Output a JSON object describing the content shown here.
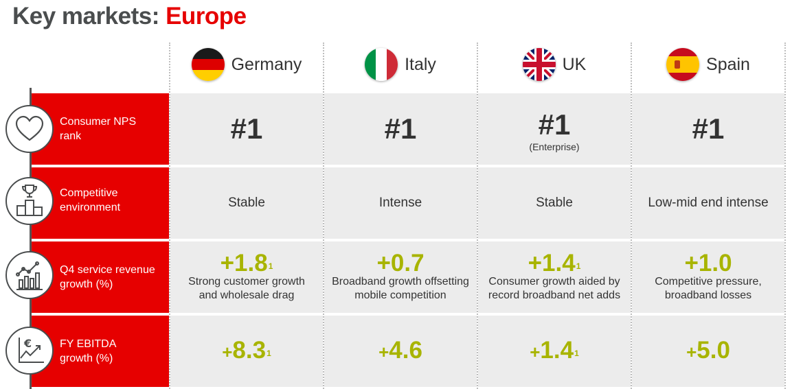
{
  "title": {
    "prefix": "Key markets: ",
    "highlight": "Europe"
  },
  "countries": [
    {
      "name": "Germany",
      "flag": "germany-flag"
    },
    {
      "name": "Italy",
      "flag": "italy-flag"
    },
    {
      "name": "UK",
      "flag": "uk-flag"
    },
    {
      "name": "Spain",
      "flag": "spain-flag"
    }
  ],
  "rows": [
    {
      "label_lines": [
        "Consumer NPS",
        "rank"
      ],
      "icon": "heart-icon"
    },
    {
      "label_lines": [
        "Competitive",
        "environment"
      ],
      "icon": "podium-trophy-icon"
    },
    {
      "label_lines": [
        "Q4 service revenue",
        "growth (%)"
      ],
      "icon": "growth-chart-icon"
    },
    {
      "label_lines": [
        "FY EBITDA",
        "growth (%)"
      ],
      "icon": "euro-chart-icon"
    }
  ],
  "nps": [
    {
      "rank": "#1",
      "sub": ""
    },
    {
      "rank": "#1",
      "sub": ""
    },
    {
      "rank": "#1",
      "sub": "(Enterprise)"
    },
    {
      "rank": "#1",
      "sub": ""
    }
  ],
  "competitive": [
    "Stable",
    "Intense",
    "Stable",
    "Low-mid end intense"
  ],
  "service_revenue": [
    {
      "value": "+1.8",
      "footnote": "1",
      "notes": [
        "Strong customer growth",
        "and wholesale drag"
      ]
    },
    {
      "value": "+0.7",
      "footnote": "",
      "notes": [
        "Broadband growth offsetting",
        "mobile competition"
      ]
    },
    {
      "value": "+1.4",
      "footnote": "1",
      "notes": [
        "Consumer growth aided by",
        "record broadband net adds"
      ]
    },
    {
      "value": "+1.0",
      "footnote": "",
      "notes": [
        "Competitive pressure,",
        "broadband losses"
      ]
    }
  ],
  "ebitda": [
    {
      "sign": "+",
      "value": "8.3",
      "footnote": "1"
    },
    {
      "sign": "+",
      "value": "4.6",
      "footnote": ""
    },
    {
      "sign": "+",
      "value": "1.4",
      "footnote": "1"
    },
    {
      "sign": "+",
      "value": "5.0",
      "footnote": ""
    }
  ],
  "colors": {
    "brand_red": "#e60000",
    "accent_green": "#a8b400",
    "title_grey": "#4a4d4e",
    "cell_grey": "#ececec"
  }
}
